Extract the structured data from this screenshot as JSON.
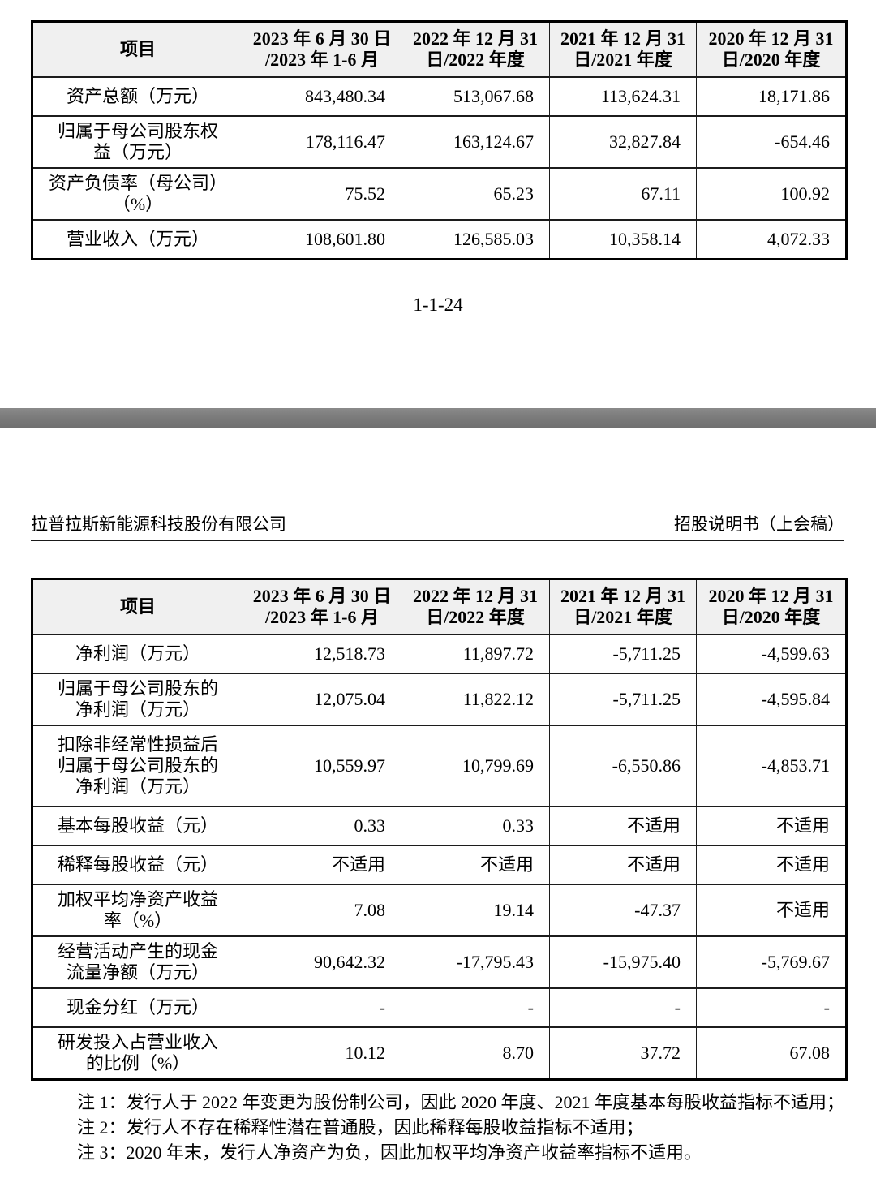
{
  "page1": {
    "page_number": "1-1-24",
    "table": {
      "columns": [
        "项目",
        "2023 年 6 月 30 日\n/2023 年 1-6 月",
        "2022 年 12 月 31\n日/2022 年度",
        "2021 年 12 月 31\n日/2021 年度",
        "2020 年 12 月 31\n日/2020 年度"
      ],
      "rows": [
        {
          "label": "资产总额（万元）",
          "values": [
            "843,480.34",
            "513,067.68",
            "113,624.31",
            "18,171.86"
          ]
        },
        {
          "label": "归属于母公司股东权\n益（万元）",
          "values": [
            "178,116.47",
            "163,124.67",
            "32,827.84",
            "-654.46"
          ]
        },
        {
          "label": "资产负债率（母公司）\n（%）",
          "values": [
            "75.52",
            "65.23",
            "67.11",
            "100.92"
          ]
        },
        {
          "label": "营业收入（万元）",
          "values": [
            "108,601.80",
            "126,585.03",
            "10,358.14",
            "4,072.33"
          ]
        }
      ]
    }
  },
  "page2": {
    "header": {
      "company": "拉普拉斯新能源科技股份有限公司",
      "doc_title": "招股说明书（上会稿）"
    },
    "table": {
      "columns": [
        "项目",
        "2023 年 6 月 30 日\n/2023 年 1-6 月",
        "2022 年 12 月 31\n日/2022 年度",
        "2021 年 12 月 31\n日/2021 年度",
        "2020 年 12 月 31\n日/2020 年度"
      ],
      "rows": [
        {
          "label": "净利润（万元）",
          "values": [
            "12,518.73",
            "11,897.72",
            "-5,711.25",
            "-4,599.63"
          ]
        },
        {
          "label": "归属于母公司股东的\n净利润（万元）",
          "values": [
            "12,075.04",
            "11,822.12",
            "-5,711.25",
            "-4,595.84"
          ]
        },
        {
          "label": "扣除非经常性损益后\n归属于母公司股东的\n净利润（万元）",
          "values": [
            "10,559.97",
            "10,799.69",
            "-6,550.86",
            "-4,853.71"
          ]
        },
        {
          "label": "基本每股收益（元）",
          "values": [
            "0.33",
            "0.33",
            "不适用",
            "不适用"
          ]
        },
        {
          "label": "稀释每股收益（元）",
          "values": [
            "不适用",
            "不适用",
            "不适用",
            "不适用"
          ]
        },
        {
          "label": "加权平均净资产收益\n率（%）",
          "values": [
            "7.08",
            "19.14",
            "-47.37",
            "不适用"
          ]
        },
        {
          "label": "经营活动产生的现金\n流量净额（万元）",
          "values": [
            "90,642.32",
            "-17,795.43",
            "-15,975.40",
            "-5,769.67"
          ]
        },
        {
          "label": "现金分红（万元）",
          "values": [
            "-",
            "-",
            "-",
            "-"
          ]
        },
        {
          "label": "研发投入占营业收入\n的比例（%）",
          "values": [
            "10.12",
            "8.70",
            "37.72",
            "67.08"
          ]
        }
      ]
    },
    "notes": [
      "注 1：发行人于 2022 年变更为股份制公司，因此 2020 年度、2021 年度基本每股收益指标不适用；",
      "注 2：发行人不存在稀释性潜在普通股，因此稀释每股收益指标不适用；",
      "注 3：2020 年末，发行人净资产为负，因此加权平均净资产收益率指标不适用。"
    ]
  }
}
